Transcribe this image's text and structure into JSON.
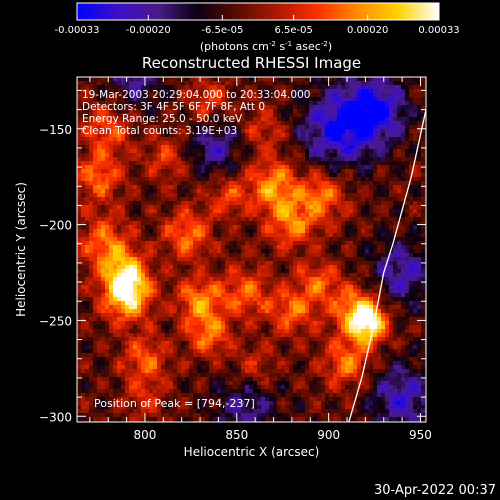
{
  "chart_data": {
    "type": "heatmap",
    "title": "Reconstructed RHESSI Image",
    "xlabel": "Heliocentric X (arcsec)",
    "ylabel": "Heliocentric Y (arcsec)",
    "xlim": [
      763,
      953
    ],
    "ylim": [
      -303,
      -123
    ],
    "x_ticks": [
      800,
      850,
      900,
      950
    ],
    "y_ticks": [
      -300,
      -250,
      -200,
      -150
    ],
    "colorbar": {
      "range": [
        -0.00033,
        0.00033
      ],
      "tick_values": [
        -0.00033,
        -0.0002,
        -6.5e-05,
        6.5e-05,
        0.0002,
        0.00033
      ],
      "tick_labels": [
        "-0.00033",
        "-0.00020",
        "-6.5e-05",
        "6.5e-05",
        "0.00020",
        "0.00033"
      ],
      "unit_label_parts": [
        "(photons cm",
        "-2",
        " s",
        "-1",
        " asec",
        "-2",
        ")"
      ],
      "colormap": [
        "#0000ff",
        "#3a10c8",
        "#4a1a8c",
        "#0a0010",
        "#5a0c00",
        "#b01800",
        "#ff3000",
        "#ff8c00",
        "#ffd200",
        "#ffffff"
      ]
    },
    "annotations": [
      "19-Mar-2003 20:29:04.000 to 20:33:04.000",
      "Detectors: 3F 4F 5F 6F 7F 8F, Att 0",
      "Energy Range: 25.0 - 50.0 keV",
      "Clean    Total counts: 3.19E+03"
    ],
    "peak_label": "Position of Peak = [794,-237]",
    "peak_position": [
      794,
      -237
    ],
    "limb_curve": {
      "color": "#ffffff",
      "points": [
        [
          953,
          -140
        ],
        [
          945,
          -175
        ],
        [
          935,
          -210
        ],
        [
          930,
          -225
        ],
        [
          924,
          -255
        ],
        [
          918,
          -280
        ],
        [
          911,
          -303
        ]
      ]
    },
    "hot_spots": [
      {
        "x": 790,
        "y": -237,
        "amp": 1.0,
        "r": 9
      },
      {
        "x": 790,
        "y": -225,
        "amp": 0.7,
        "r": 8
      },
      {
        "x": 778,
        "y": -210,
        "amp": 0.6,
        "r": 10
      },
      {
        "x": 775,
        "y": -175,
        "amp": 0.55,
        "r": 9
      },
      {
        "x": 780,
        "y": -150,
        "amp": 0.5,
        "r": 9
      },
      {
        "x": 800,
        "y": -270,
        "amp": 0.5,
        "r": 9
      },
      {
        "x": 823,
        "y": -205,
        "amp": 0.6,
        "r": 9
      },
      {
        "x": 830,
        "y": -240,
        "amp": 0.65,
        "r": 9
      },
      {
        "x": 835,
        "y": -258,
        "amp": 0.55,
        "r": 8
      },
      {
        "x": 812,
        "y": -165,
        "amp": 0.4,
        "r": 8
      },
      {
        "x": 855,
        "y": -235,
        "amp": 0.55,
        "r": 9
      },
      {
        "x": 845,
        "y": -185,
        "amp": 0.4,
        "r": 8
      },
      {
        "x": 870,
        "y": -180,
        "amp": 0.7,
        "r": 10
      },
      {
        "x": 880,
        "y": -200,
        "amp": 0.6,
        "r": 9
      },
      {
        "x": 880,
        "y": -245,
        "amp": 0.55,
        "r": 9
      },
      {
        "x": 897,
        "y": -185,
        "amp": 0.6,
        "r": 9
      },
      {
        "x": 895,
        "y": -230,
        "amp": 0.5,
        "r": 8
      },
      {
        "x": 915,
        "y": -245,
        "amp": 0.75,
        "r": 9
      },
      {
        "x": 922,
        "y": -252,
        "amp": 0.9,
        "r": 7
      },
      {
        "x": 910,
        "y": -272,
        "amp": 0.6,
        "r": 9
      },
      {
        "x": 860,
        "y": -275,
        "amp": 0.35,
        "r": 8
      },
      {
        "x": 800,
        "y": -290,
        "amp": 0.3,
        "r": 8
      },
      {
        "x": 865,
        "y": -150,
        "amp": 0.35,
        "r": 8
      },
      {
        "x": 835,
        "y": -135,
        "amp": 0.4,
        "r": 8
      },
      {
        "x": 905,
        "y": -150,
        "amp": -0.75,
        "r": 14
      },
      {
        "x": 925,
        "y": -140,
        "amp": -0.8,
        "r": 12
      },
      {
        "x": 940,
        "y": -290,
        "amp": -0.6,
        "r": 12
      },
      {
        "x": 855,
        "y": -295,
        "amp": -0.45,
        "r": 12
      },
      {
        "x": 795,
        "y": -125,
        "amp": -0.45,
        "r": 10
      },
      {
        "x": 838,
        "y": -160,
        "amp": -0.5,
        "r": 10
      },
      {
        "x": 940,
        "y": -225,
        "amp": -0.55,
        "r": 12
      }
    ],
    "grid": false
  },
  "footer": {
    "timestamp": "30-Apr-2022 00:37"
  }
}
